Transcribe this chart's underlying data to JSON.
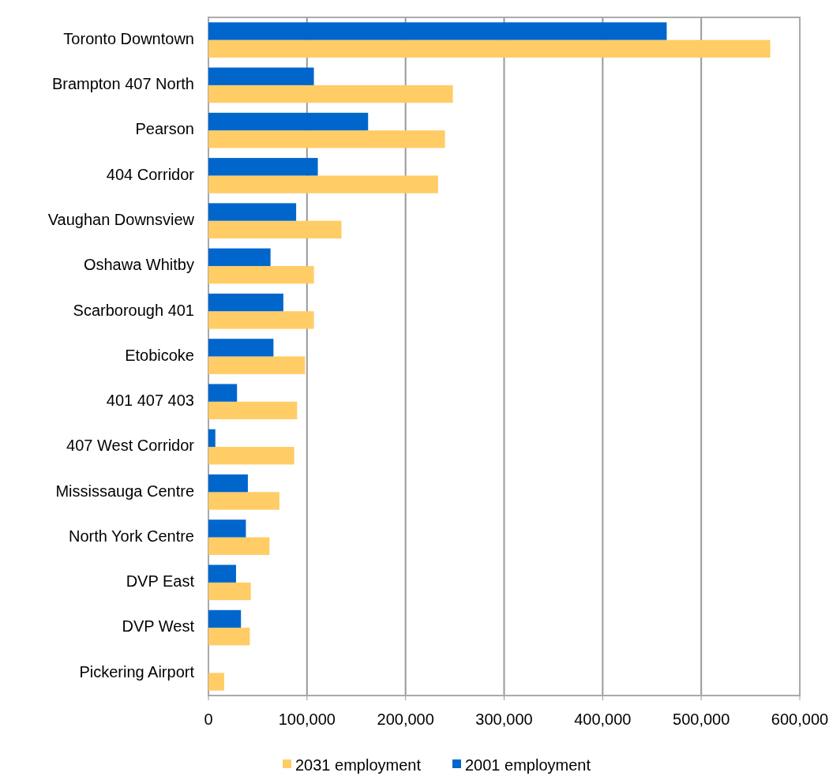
{
  "chart_data": {
    "type": "bar",
    "orientation": "horizontal",
    "categories": [
      "Toronto Downtown",
      "Brampton 407 North",
      "Pearson ",
      "404 Corridor",
      "Vaughan Downsview",
      "Oshawa Whitby",
      "Scarborough 401",
      "Etobicoke",
      "401 407 403",
      "407 West Corridor",
      "Mississauga Centre",
      "North York Centre",
      "DVP East",
      "DVP West",
      "Pickering Airport"
    ],
    "series": [
      {
        "name": "2031 employment",
        "color": "#ffcc66",
        "values": [
          570000,
          248000,
          240000,
          233000,
          135000,
          107000,
          107000,
          98000,
          90000,
          87000,
          72000,
          62000,
          43000,
          42000,
          16000
        ]
      },
      {
        "name": "2001 employment",
        "color": "#0066cc",
        "values": [
          465000,
          107000,
          162000,
          111000,
          89000,
          63000,
          76000,
          66000,
          29000,
          7000,
          40000,
          38000,
          28000,
          33000,
          null
        ]
      }
    ],
    "xlim": [
      0,
      600000
    ],
    "xticks": [
      0,
      {
        "value": 100000,
        "label": "100,000"
      },
      {
        "value": 200000,
        "label": "200,000"
      },
      {
        "value": 300000,
        "label": "300,000"
      },
      {
        "value": 400000,
        "label": "400,000"
      },
      {
        "value": 500000,
        "label": "500,000"
      },
      {
        "value": 600000,
        "label": "600,000"
      }
    ],
    "grid": "x",
    "legend": "bottom"
  }
}
